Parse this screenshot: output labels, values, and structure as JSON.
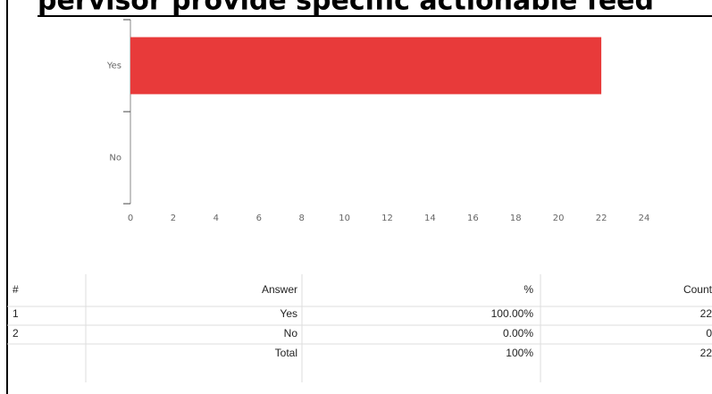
{
  "chart_data": {
    "type": "bar",
    "orientation": "horizontal",
    "title": "pervisor provide specific actionable feed",
    "categories": [
      "Yes",
      "No"
    ],
    "values": [
      22,
      0
    ],
    "color": "#e83a3a",
    "xlim": [
      0,
      24
    ],
    "xticks": [
      0,
      2,
      4,
      6,
      8,
      10,
      12,
      14,
      16,
      18,
      20,
      22,
      24
    ]
  },
  "table": {
    "header": [
      "#",
      "Answer",
      "%",
      "Count"
    ],
    "rows": [
      [
        "1",
        "Yes",
        "100.00%",
        "22"
      ],
      [
        "2",
        "No",
        "0.00%",
        "0"
      ],
      [
        "",
        "Total",
        "100%",
        "22"
      ]
    ]
  }
}
